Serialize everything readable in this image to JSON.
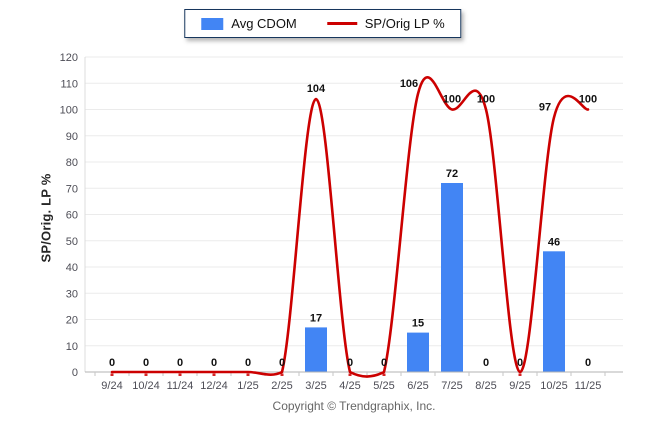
{
  "legend": {
    "bar_label": "Avg CDOM",
    "line_label": "SP/Orig LP %"
  },
  "y_axis_title": "SP/Orig. LP %",
  "footer": "Copyright © Trendgraphix, Inc.",
  "colors": {
    "bar": "#4285f4",
    "line": "#cc0000",
    "gridline": "#ebebeb",
    "axis": "#b3b3b3",
    "tick_label": "#4d4d56",
    "data_label": "#111111"
  },
  "chart_data": {
    "type": "combo",
    "categories": [
      "9/24",
      "10/24",
      "11/24",
      "12/24",
      "1/25",
      "2/25",
      "3/25",
      "4/25",
      "5/25",
      "6/25",
      "7/25",
      "8/25",
      "9/25",
      "10/25",
      "11/25"
    ],
    "series": [
      {
        "name": "Avg CDOM",
        "type": "bar",
        "color": "#4285f4",
        "values": [
          0,
          0,
          0,
          0,
          0,
          0,
          17,
          0,
          0,
          15,
          72,
          0,
          0,
          46,
          0
        ]
      },
      {
        "name": "SP/Orig LP %",
        "type": "line",
        "color": "#cc0000",
        "values": [
          0,
          0,
          0,
          0,
          0,
          0,
          104,
          0,
          0,
          106,
          100,
          100,
          0,
          97,
          100
        ]
      }
    ],
    "title": "",
    "xlabel": "",
    "ylabel": "SP/Orig. LP %",
    "ylim": [
      0,
      120
    ],
    "ytick_step": 10,
    "grid": true,
    "legend_position": "top",
    "data_labels": true,
    "line_style": "smooth-spline"
  }
}
